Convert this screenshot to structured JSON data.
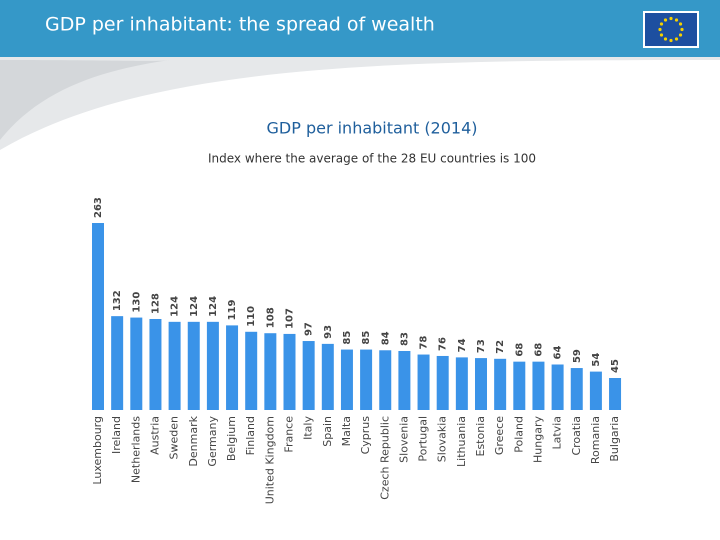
{
  "header": {
    "title": "GDP per inhabitant: the spread of wealth"
  },
  "chart_data": {
    "type": "bar",
    "title": "GDP per inhabitant (2014)",
    "subtitle": "Index where the average of the 28 EU countries is 100",
    "categories": [
      "Luxembourg",
      "Ireland",
      "Netherlands",
      "Austria",
      "Sweden",
      "Denmark",
      "Germany",
      "Belgium",
      "Finland",
      "United Kingdom",
      "France",
      "Italy",
      "Spain",
      "Malta",
      "Cyprus",
      "Czech Republic",
      "Slovenia",
      "Portugal",
      "Slovakia",
      "Lithuania",
      "Estonia",
      "Greece",
      "Poland",
      "Hungary",
      "Latvia",
      "Croatia",
      "Romania",
      "Bulgaria"
    ],
    "values": [
      263,
      132,
      130,
      128,
      124,
      124,
      124,
      119,
      110,
      108,
      107,
      97,
      93,
      85,
      85,
      84,
      83,
      78,
      76,
      74,
      73,
      72,
      68,
      68,
      64,
      59,
      54,
      45
    ],
    "color": "#3a93e8"
  }
}
